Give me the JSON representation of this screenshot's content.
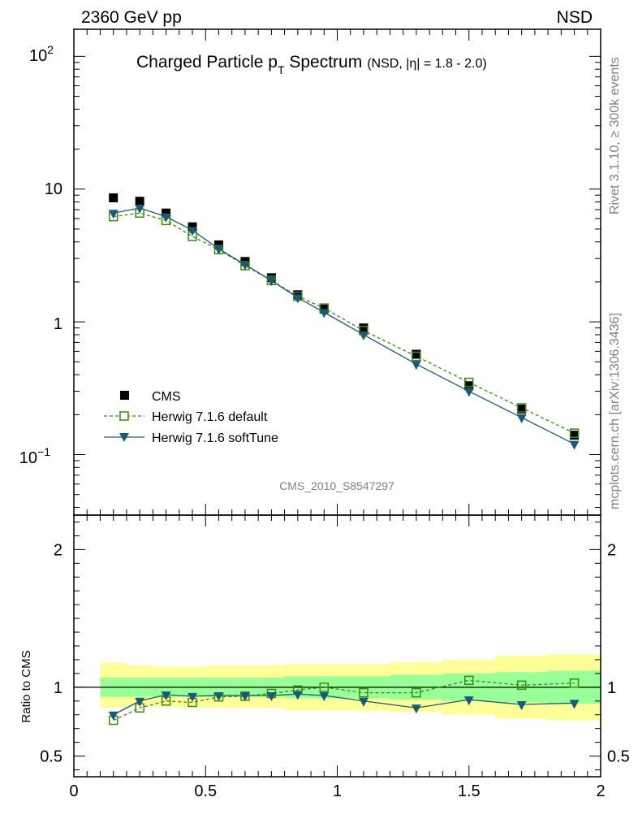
{
  "header": {
    "left": "2360 GeV pp",
    "right": "NSD"
  },
  "side_labels": {
    "rivet": "Rivet 3.1.10, ≥ 300k events",
    "mcplots": "mcplots.cern.ch [arXiv:1306.3436]"
  },
  "watermark": "CMS_2010_S8547297",
  "colors": {
    "cms": "#000000",
    "herwig_default": "#3a8a0e",
    "herwig_softtune": "#1a5a78",
    "band_outer": "#ffff99",
    "band_inner": "#99ff99"
  },
  "chart_data": [
    {
      "type": "scatter",
      "title_main": "Charged Particle p",
      "title_sub": "T",
      "title_main2": " Spectrum",
      "title_extra": "(NSD, |η| = 1.8 - 2.0)",
      "xlim": [
        0,
        2
      ],
      "ylim": [
        0.035,
        160
      ],
      "yscale": "log",
      "ytick_labels": {
        "m1": "10",
        "m1_exp": "−1",
        "zero": "1",
        "one": "10",
        "two": "10",
        "two_exp": "2"
      },
      "legend_placement": "lower-left",
      "x": [
        0.15,
        0.25,
        0.35,
        0.45,
        0.55,
        0.65,
        0.75,
        0.85,
        0.95,
        1.1,
        1.3,
        1.5,
        1.7,
        1.9
      ],
      "series": [
        {
          "name": "CMS",
          "marker": "filled-square",
          "values": [
            8.6,
            8.1,
            6.6,
            5.2,
            3.8,
            2.85,
            2.15,
            1.6,
            1.25,
            0.9,
            0.57,
            0.33,
            0.22,
            0.14
          ]
        },
        {
          "name": "Herwig 7.1.6 default",
          "marker": "open-square",
          "line": "dashed",
          "values": [
            6.2,
            6.6,
            5.8,
            4.4,
            3.5,
            2.65,
            2.05,
            1.56,
            1.27,
            0.86,
            0.55,
            0.35,
            0.225,
            0.145
          ]
        },
        {
          "name": "Herwig 7.1.6 softTune",
          "marker": "filled-triangle-down",
          "line": "solid",
          "values": [
            6.6,
            7.2,
            6.2,
            4.9,
            3.55,
            2.7,
            2.05,
            1.52,
            1.18,
            0.8,
            0.48,
            0.3,
            0.19,
            0.12
          ]
        }
      ]
    },
    {
      "type": "line",
      "ylabel": "Ratio to CMS",
      "xlim": [
        0,
        2
      ],
      "ylim": [
        0.35,
        2.25
      ],
      "x_ticks": [
        0,
        0.5,
        1,
        1.5,
        2
      ],
      "x_tick_labels": [
        "0",
        "0.5",
        "1",
        "1.5",
        "2"
      ],
      "y_ticks": [
        0.5,
        1,
        2
      ],
      "y_tick_labels": [
        "0.5",
        "1",
        "2"
      ],
      "x": [
        0.15,
        0.25,
        0.35,
        0.45,
        0.55,
        0.65,
        0.75,
        0.85,
        0.95,
        1.1,
        1.3,
        1.5,
        1.7,
        1.9
      ],
      "bands": [
        {
          "x0": 0.1,
          "x1": 0.2,
          "outer": [
            0.85,
            1.18
          ],
          "inner": [
            0.93,
            1.07
          ]
        },
        {
          "x0": 0.2,
          "x1": 0.3,
          "outer": [
            0.86,
            1.16
          ],
          "inner": [
            0.93,
            1.07
          ]
        },
        {
          "x0": 0.3,
          "x1": 0.4,
          "outer": [
            0.86,
            1.15
          ],
          "inner": [
            0.93,
            1.07
          ]
        },
        {
          "x0": 0.4,
          "x1": 0.5,
          "outer": [
            0.85,
            1.15
          ],
          "inner": [
            0.93,
            1.07
          ]
        },
        {
          "x0": 0.5,
          "x1": 0.6,
          "outer": [
            0.85,
            1.16
          ],
          "inner": [
            0.93,
            1.07
          ]
        },
        {
          "x0": 0.6,
          "x1": 0.7,
          "outer": [
            0.85,
            1.16
          ],
          "inner": [
            0.93,
            1.07
          ]
        },
        {
          "x0": 0.7,
          "x1": 0.8,
          "outer": [
            0.85,
            1.16
          ],
          "inner": [
            0.93,
            1.07
          ]
        },
        {
          "x0": 0.8,
          "x1": 0.9,
          "outer": [
            0.83,
            1.17
          ],
          "inner": [
            0.92,
            1.08
          ]
        },
        {
          "x0": 0.9,
          "x1": 1.0,
          "outer": [
            0.83,
            1.17
          ],
          "inner": [
            0.92,
            1.08
          ]
        },
        {
          "x0": 1.0,
          "x1": 1.2,
          "outer": [
            0.83,
            1.17
          ],
          "inner": [
            0.92,
            1.08
          ]
        },
        {
          "x0": 1.2,
          "x1": 1.4,
          "outer": [
            0.82,
            1.18
          ],
          "inner": [
            0.91,
            1.09
          ]
        },
        {
          "x0": 1.4,
          "x1": 1.6,
          "outer": [
            0.8,
            1.2
          ],
          "inner": [
            0.9,
            1.1
          ]
        },
        {
          "x0": 1.6,
          "x1": 1.8,
          "outer": [
            0.77,
            1.23
          ],
          "inner": [
            0.89,
            1.11
          ]
        },
        {
          "x0": 1.8,
          "x1": 2.0,
          "outer": [
            0.76,
            1.24
          ],
          "inner": [
            0.88,
            1.12
          ]
        }
      ],
      "series": [
        {
          "name": "Herwig 7.1.6 default",
          "marker": "open-square",
          "line": "dashed",
          "values": [
            0.76,
            0.85,
            0.9,
            0.89,
            0.93,
            0.935,
            0.955,
            0.98,
            1.0,
            0.96,
            0.96,
            1.05,
            1.015,
            1.03
          ]
        },
        {
          "name": "Herwig 7.1.6 softTune",
          "marker": "filled-triangle-down",
          "line": "solid",
          "values": [
            0.8,
            0.9,
            0.945,
            0.935,
            0.94,
            0.94,
            0.94,
            0.95,
            0.94,
            0.9,
            0.85,
            0.91,
            0.875,
            0.885
          ]
        }
      ]
    }
  ]
}
